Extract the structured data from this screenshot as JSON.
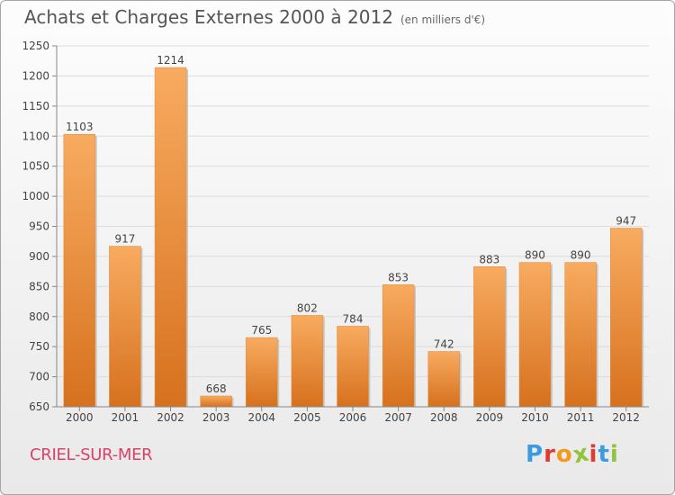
{
  "chart_data": {
    "type": "bar",
    "title": "Achats et Charges Externes 2000 à 2012",
    "subtitle": "(en milliers d'€)",
    "categories": [
      "2000",
      "2001",
      "2002",
      "2003",
      "2004",
      "2005",
      "2006",
      "2007",
      "2008",
      "2009",
      "2010",
      "2011",
      "2012"
    ],
    "values": [
      1103,
      917,
      1214,
      668,
      765,
      802,
      784,
      853,
      742,
      883,
      890,
      890,
      947
    ],
    "ylim": [
      650,
      1250
    ],
    "yticks": [
      650,
      700,
      750,
      800,
      850,
      900,
      950,
      1000,
      1050,
      1100,
      1150,
      1200,
      1250
    ],
    "grid": true,
    "bar_color_light": "#f8ab60",
    "bar_color_dark": "#d6711e"
  },
  "footer": {
    "commune": "CRIEL-SUR-MER",
    "logo_letters": [
      "P",
      "r",
      "o",
      "x",
      "i",
      "t",
      "i"
    ],
    "logo_colors": [
      "#3b9be0",
      "#e23a2e",
      "#f29a1d",
      "#8fc43c",
      "#e23a2e",
      "#3b9be0",
      "#8fc43c"
    ]
  }
}
